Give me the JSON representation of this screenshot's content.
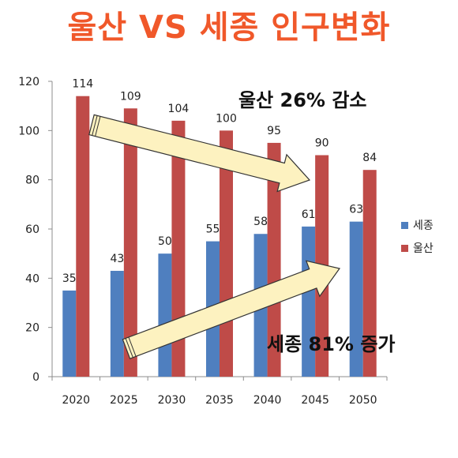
{
  "title": "울산 VS 세종 인구변화",
  "annotations": {
    "ulsan": "울산 26% 감소",
    "sejong": "세종 81% 증가"
  },
  "colors": {
    "title": "#f0582a",
    "sejong": "#4f7fbf",
    "ulsan": "#bf4b48",
    "arrow_fill": "#fdf2c0",
    "arrow_stroke": "#333333"
  },
  "chart_data": {
    "type": "bar",
    "categories": [
      "2020",
      "2025",
      "2030",
      "2035",
      "2040",
      "2045",
      "2050"
    ],
    "series": [
      {
        "name": "세종",
        "values": [
          35,
          43,
          50,
          55,
          58,
          61,
          63
        ]
      },
      {
        "name": "울산",
        "values": [
          114,
          109,
          104,
          100,
          95,
          90,
          84
        ]
      }
    ],
    "ylim": [
      0,
      120
    ],
    "yticks": [
      "0",
      "20",
      "40",
      "60",
      "80",
      "100",
      "120"
    ],
    "grid": false,
    "legend": "right",
    "data_labels": true
  }
}
